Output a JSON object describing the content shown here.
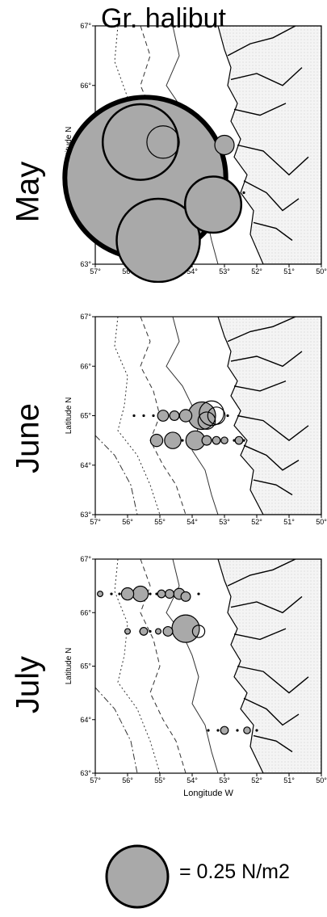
{
  "title": "Gr. halibut",
  "axes": {
    "lon_ticks": [
      "57°",
      "56°",
      "55°",
      "54°",
      "53°",
      "52°",
      "51°",
      "50°"
    ],
    "lat_ticks": [
      "63°",
      "64°",
      "65°",
      "66°",
      "67°"
    ],
    "lat_label": "Latitude N",
    "lon_label": "Longitude W",
    "lon_range": [
      57,
      50
    ],
    "lat_range": [
      63,
      67
    ]
  },
  "colors": {
    "bubble_fill": "#a9a9a9",
    "outline": "#000000"
  },
  "panels": [
    {
      "month": "May",
      "stations": [
        {
          "lon": 53.0,
          "lat": 65.0
        },
        {
          "lon": 53.3,
          "lat": 65.0
        },
        {
          "lon": 52.7,
          "lat": 64.2
        },
        {
          "lon": 52.4,
          "lat": 64.2
        }
      ],
      "bubbles": [
        {
          "lon": 55.45,
          "lat": 64.45,
          "value": 1.72,
          "filled": true
        },
        {
          "lon": 55.6,
          "lat": 65.05,
          "value": 0.38,
          "filled": false
        },
        {
          "lon": 54.9,
          "lat": 65.05,
          "value": 0.07,
          "filled": false
        },
        {
          "lon": 55.05,
          "lat": 63.4,
          "value": 0.46,
          "filled": true
        },
        {
          "lon": 53.35,
          "lat": 64.0,
          "value": 0.21,
          "filled": true
        },
        {
          "lon": 53.0,
          "lat": 65.0,
          "value": 0.025,
          "filled": true
        }
      ]
    },
    {
      "month": "June",
      "stations": [
        {
          "lon": 55.8,
          "lat": 65.0
        },
        {
          "lon": 55.5,
          "lat": 65.0
        },
        {
          "lon": 55.2,
          "lat": 65.0
        },
        {
          "lon": 54.8,
          "lat": 64.5
        },
        {
          "lon": 54.3,
          "lat": 64.5
        },
        {
          "lon": 54.0,
          "lat": 64.5
        },
        {
          "lon": 53.9,
          "lat": 65.0
        },
        {
          "lon": 52.9,
          "lat": 65.0
        },
        {
          "lon": 52.4,
          "lat": 64.5
        },
        {
          "lon": 52.7,
          "lat": 64.5
        }
      ],
      "bubbles": [
        {
          "lon": 54.9,
          "lat": 65.0,
          "value": 0.008,
          "filled": true
        },
        {
          "lon": 54.55,
          "lat": 65.0,
          "value": 0.006,
          "filled": true
        },
        {
          "lon": 54.2,
          "lat": 65.0,
          "value": 0.01,
          "filled": true
        },
        {
          "lon": 53.7,
          "lat": 65.0,
          "value": 0.05,
          "filled": true
        },
        {
          "lon": 53.4,
          "lat": 65.05,
          "value": 0.04,
          "filled": false
        },
        {
          "lon": 53.25,
          "lat": 65.0,
          "value": 0.02,
          "filled": false
        },
        {
          "lon": 53.55,
          "lat": 64.9,
          "value": 0.02,
          "filled": false
        },
        {
          "lon": 55.1,
          "lat": 64.5,
          "value": 0.01,
          "filled": true
        },
        {
          "lon": 54.6,
          "lat": 64.5,
          "value": 0.018,
          "filled": true
        },
        {
          "lon": 53.9,
          "lat": 64.5,
          "value": 0.024,
          "filled": true
        },
        {
          "lon": 53.55,
          "lat": 64.5,
          "value": 0.006,
          "filled": true
        },
        {
          "lon": 53.25,
          "lat": 64.5,
          "value": 0.004,
          "filled": true
        },
        {
          "lon": 53.0,
          "lat": 64.5,
          "value": 0.003,
          "filled": true
        },
        {
          "lon": 52.55,
          "lat": 64.5,
          "value": 0.004,
          "filled": true
        }
      ]
    },
    {
      "month": "July",
      "stations": [
        {
          "lon": 56.5,
          "lat": 66.35
        },
        {
          "lon": 56.25,
          "lat": 66.35
        },
        {
          "lon": 55.3,
          "lat": 66.35
        },
        {
          "lon": 55.1,
          "lat": 66.35
        },
        {
          "lon": 53.8,
          "lat": 66.35
        },
        {
          "lon": 55.6,
          "lat": 65.65
        },
        {
          "lon": 55.3,
          "lat": 65.65
        },
        {
          "lon": 53.2,
          "lat": 63.8
        },
        {
          "lon": 53.5,
          "lat": 63.8
        },
        {
          "lon": 52.6,
          "lat": 63.8
        },
        {
          "lon": 52.0,
          "lat": 63.8
        }
      ],
      "bubbles": [
        {
          "lon": 56.85,
          "lat": 66.35,
          "value": 0.002,
          "filled": true
        },
        {
          "lon": 56.0,
          "lat": 66.35,
          "value": 0.01,
          "filled": true
        },
        {
          "lon": 55.6,
          "lat": 66.35,
          "value": 0.016,
          "filled": true
        },
        {
          "lon": 54.95,
          "lat": 66.35,
          "value": 0.004,
          "filled": true
        },
        {
          "lon": 54.7,
          "lat": 66.35,
          "value": 0.005,
          "filled": true
        },
        {
          "lon": 54.4,
          "lat": 66.35,
          "value": 0.008,
          "filled": true
        },
        {
          "lon": 54.2,
          "lat": 66.3,
          "value": 0.006,
          "filled": true
        },
        {
          "lon": 56.0,
          "lat": 65.65,
          "value": 0.002,
          "filled": true
        },
        {
          "lon": 55.5,
          "lat": 65.65,
          "value": 0.004,
          "filled": true
        },
        {
          "lon": 55.05,
          "lat": 65.65,
          "value": 0.002,
          "filled": true
        },
        {
          "lon": 54.75,
          "lat": 65.65,
          "value": 0.006,
          "filled": true
        },
        {
          "lon": 54.2,
          "lat": 65.7,
          "value": 0.05,
          "filled": true
        },
        {
          "lon": 53.8,
          "lat": 65.65,
          "value": 0.01,
          "filled": false
        },
        {
          "lon": 53.0,
          "lat": 63.8,
          "value": 0.004,
          "filled": true
        },
        {
          "lon": 52.3,
          "lat": 63.8,
          "value": 0.003,
          "filled": true
        }
      ]
    }
  ],
  "legend": {
    "value": 0.25,
    "text": "= 0.25 N/m2"
  }
}
